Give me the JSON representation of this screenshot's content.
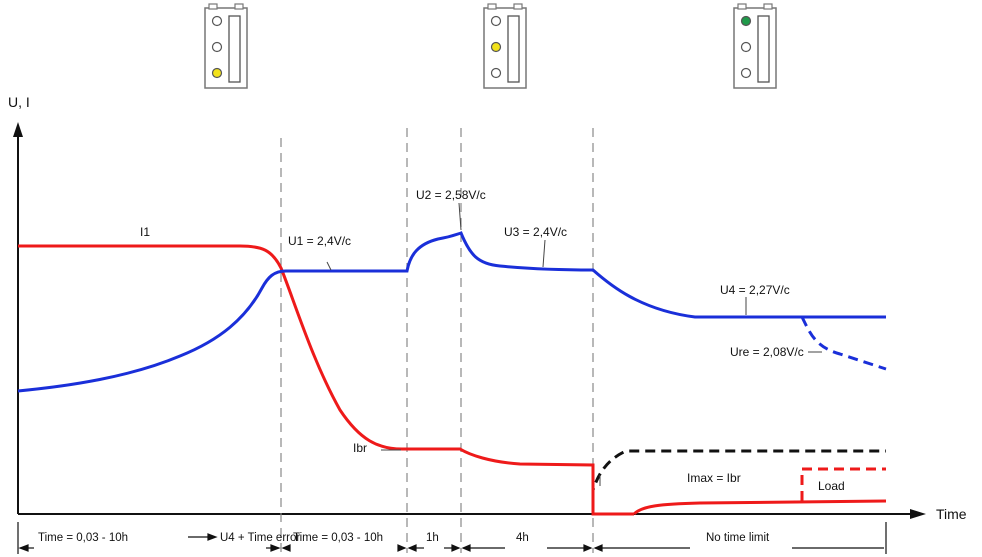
{
  "axes": {
    "y_label": "U, I",
    "x_label": "Time"
  },
  "indicators": [
    {
      "active_led": "bottom",
      "active_color": "#f2e21a"
    },
    {
      "active_led": "middle",
      "active_color": "#f2e21a"
    },
    {
      "active_led": "top",
      "active_color": "#1f9a4a"
    }
  ],
  "labels": {
    "i1": "I1",
    "u1": "U1 = 2,4V/c",
    "u2": "U2 = 2,58V/c",
    "u3": "U3 = 2,4V/c",
    "u4": "U4 = 2,27V/c",
    "ure": "Ure = 2,08V/c",
    "ibr": "Ibr",
    "imax": "Imax = Ibr",
    "load": "Load"
  },
  "phases": {
    "p1_time": "Time = 0,03 - 10h",
    "p1_next": "U4 + Time error",
    "p2": "Time = 0,03 - 10h",
    "p3": "1h",
    "p4": "4h",
    "p5": "No time limit"
  },
  "colors": {
    "voltage": "#1a2fd9",
    "current": "#ee1a1a",
    "imax": "#111111",
    "divider": "#888888"
  }
}
